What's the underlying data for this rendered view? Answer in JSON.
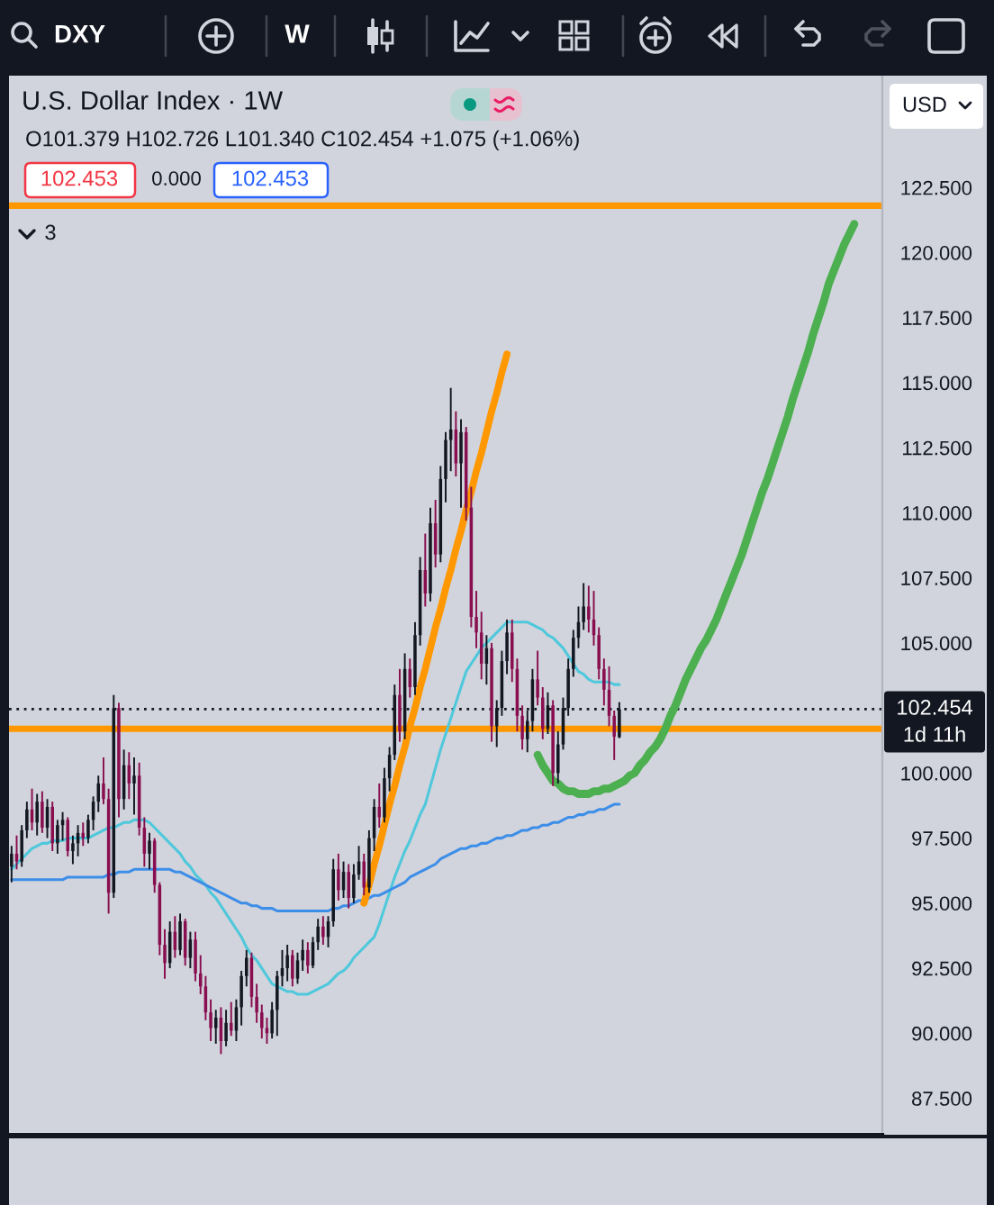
{
  "chart_data": {
    "type": "candlestick",
    "title": "U.S. Dollar Index · 1W",
    "subtitle": "O101.379 H102.726 L101.340 C102.454 +1.075 (+1.06%)",
    "categories": [
      null,
      null,
      null,
      null,
      null,
      null,
      null,
      null,
      null,
      null,
      null,
      null,
      null,
      null,
      null,
      null,
      null,
      null,
      null,
      null,
      null,
      null,
      null,
      null,
      null,
      null,
      null,
      null,
      null,
      null,
      null,
      null,
      null,
      null,
      null,
      null,
      null,
      null,
      null,
      null,
      null,
      null,
      null,
      null,
      null,
      null,
      null,
      null,
      null,
      null,
      null,
      null,
      null,
      null,
      null,
      null,
      null,
      null,
      null,
      null,
      null,
      null,
      null,
      null,
      null,
      null,
      null,
      null,
      null,
      null,
      null,
      null,
      null,
      null,
      null,
      null,
      null,
      null,
      null,
      null,
      null,
      null,
      null,
      null,
      null,
      null,
      null,
      null,
      null,
      null,
      null,
      null,
      null,
      null,
      null,
      null,
      null,
      null,
      null,
      null,
      null,
      null,
      null,
      null,
      null,
      null,
      null,
      null,
      null,
      null,
      null,
      null,
      null,
      null,
      null,
      null,
      null,
      null,
      null,
      null,
      null,
      null,
      null,
      null,
      null,
      null,
      null,
      null,
      null,
      null,
      null,
      null,
      null,
      null,
      null,
      null,
      null,
      null,
      null,
      null,
      null,
      null,
      null,
      null,
      null,
      null,
      null,
      null,
      null,
      null,
      null,
      null,
      null,
      null,
      null,
      null,
      null,
      null,
      null,
      null,
      null,
      null,
      null,
      null,
      null,
      null,
      null,
      null,
      null,
      null,
      null
    ],
    "ohlc": [
      [
        96.4,
        97.2,
        95.8,
        96.9
      ],
      [
        96.9,
        97.6,
        96.3,
        96.6
      ],
      [
        96.6,
        98.0,
        96.4,
        97.8
      ],
      [
        97.8,
        98.9,
        97.5,
        98.6
      ],
      [
        98.6,
        99.4,
        97.8,
        98.1
      ],
      [
        98.1,
        99.2,
        97.6,
        98.9
      ],
      [
        98.9,
        99.3,
        97.7,
        97.9
      ],
      [
        97.9,
        99.0,
        97.5,
        98.7
      ],
      [
        98.7,
        98.9,
        97.0,
        97.3
      ],
      [
        97.3,
        98.2,
        96.9,
        98.0
      ],
      [
        98.0,
        98.5,
        97.4,
        98.2
      ],
      [
        98.2,
        98.3,
        96.8,
        97.0
      ],
      [
        97.0,
        97.6,
        96.5,
        97.3
      ],
      [
        97.3,
        98.0,
        96.8,
        97.7
      ],
      [
        97.7,
        98.1,
        97.2,
        97.5
      ],
      [
        97.5,
        98.4,
        97.3,
        98.2
      ],
      [
        98.2,
        99.1,
        97.8,
        98.9
      ],
      [
        98.9,
        99.9,
        98.5,
        99.6
      ],
      [
        99.6,
        100.6,
        98.8,
        99.0
      ],
      [
        99.0,
        99.4,
        94.6,
        95.4
      ],
      [
        95.4,
        103.0,
        95.2,
        102.5
      ],
      [
        102.5,
        102.7,
        98.3,
        99.0
      ],
      [
        99.0,
        100.9,
        98.6,
        100.3
      ],
      [
        100.3,
        100.8,
        99.0,
        99.6
      ],
      [
        99.6,
        100.6,
        98.4,
        99.9
      ],
      [
        99.9,
        100.4,
        97.6,
        97.9
      ],
      [
        97.9,
        98.3,
        96.4,
        96.9
      ],
      [
        96.9,
        97.7,
        96.3,
        97.4
      ],
      [
        97.4,
        97.5,
        95.4,
        95.7
      ],
      [
        95.7,
        95.8,
        93.0,
        93.4
      ],
      [
        93.4,
        94.0,
        92.1,
        92.7
      ],
      [
        92.7,
        94.3,
        92.5,
        93.9
      ],
      [
        93.9,
        94.5,
        92.9,
        93.2
      ],
      [
        93.2,
        94.6,
        93.0,
        94.3
      ],
      [
        94.3,
        94.4,
        92.6,
        92.9
      ],
      [
        92.9,
        93.9,
        92.5,
        93.6
      ],
      [
        93.6,
        93.9,
        92.0,
        92.3
      ],
      [
        92.3,
        93.0,
        91.5,
        91.8
      ],
      [
        91.8,
        92.2,
        90.5,
        90.8
      ],
      [
        90.8,
        91.3,
        89.7,
        90.2
      ],
      [
        90.2,
        90.9,
        89.6,
        90.6
      ],
      [
        90.6,
        91.0,
        89.2,
        89.7
      ],
      [
        89.7,
        90.9,
        89.5,
        90.4
      ],
      [
        90.4,
        91.2,
        89.9,
        90.1
      ],
      [
        90.1,
        91.3,
        89.7,
        91.0
      ],
      [
        91.0,
        92.4,
        90.3,
        92.2
      ],
      [
        92.2,
        93.2,
        91.8,
        92.9
      ],
      [
        92.9,
        93.1,
        91.0,
        91.4
      ],
      [
        91.4,
        91.9,
        90.4,
        90.8
      ],
      [
        90.8,
        91.1,
        89.8,
        90.2
      ],
      [
        90.2,
        90.6,
        89.6,
        90.0
      ],
      [
        90.0,
        91.2,
        89.8,
        90.9
      ],
      [
        90.9,
        92.4,
        89.9,
        92.2
      ],
      [
        92.2,
        93.2,
        91.8,
        92.5
      ],
      [
        92.5,
        93.4,
        92.0,
        93.0
      ],
      [
        93.0,
        93.2,
        91.8,
        92.1
      ],
      [
        92.1,
        93.1,
        91.9,
        92.8
      ],
      [
        92.8,
        93.6,
        92.4,
        93.2
      ],
      [
        93.2,
        93.5,
        92.3,
        92.6
      ],
      [
        92.6,
        93.7,
        92.5,
        93.5
      ],
      [
        93.5,
        94.4,
        93.2,
        94.1
      ],
      [
        94.1,
        94.5,
        93.4,
        93.7
      ],
      [
        93.7,
        94.5,
        93.3,
        94.3
      ],
      [
        94.3,
        96.7,
        94.1,
        96.3
      ],
      [
        96.3,
        96.9,
        95.1,
        95.5
      ],
      [
        95.5,
        96.6,
        95.2,
        96.2
      ],
      [
        96.2,
        96.5,
        94.8,
        95.2
      ],
      [
        95.2,
        96.5,
        95.0,
        96.1
      ],
      [
        96.1,
        97.2,
        95.9,
        96.6
      ],
      [
        96.6,
        96.9,
        95.3,
        95.6
      ],
      [
        95.6,
        97.8,
        95.4,
        97.5
      ],
      [
        97.5,
        99.0,
        97.0,
        98.7
      ],
      [
        98.7,
        99.6,
        97.9,
        98.3
      ],
      [
        98.3,
        100.2,
        98.1,
        99.8
      ],
      [
        99.8,
        101.0,
        99.3,
        100.7
      ],
      [
        100.7,
        103.4,
        100.5,
        103.0
      ],
      [
        103.0,
        104.0,
        101.2,
        101.6
      ],
      [
        101.6,
        104.6,
        101.3,
        104.0
      ],
      [
        104.0,
        104.4,
        102.9,
        103.3
      ],
      [
        103.3,
        105.8,
        103.0,
        105.3
      ],
      [
        105.3,
        108.3,
        104.9,
        107.8
      ],
      [
        107.8,
        109.2,
        106.4,
        106.9
      ],
      [
        106.9,
        110.2,
        106.6,
        109.6
      ],
      [
        109.6,
        110.5,
        107.9,
        108.4
      ],
      [
        108.4,
        111.8,
        108.1,
        111.3
      ],
      [
        111.3,
        113.1,
        110.4,
        112.8
      ],
      [
        112.8,
        114.8,
        111.6,
        113.2
      ],
      [
        113.2,
        113.9,
        111.4,
        111.9
      ],
      [
        111.9,
        113.6,
        110.2,
        113.1
      ],
      [
        113.1,
        113.3,
        109.7,
        110.2
      ],
      [
        110.2,
        111.0,
        105.6,
        106.0
      ],
      [
        106.0,
        107.0,
        104.8,
        105.4
      ],
      [
        105.4,
        106.2,
        103.6,
        104.2
      ],
      [
        104.2,
        105.3,
        103.4,
        104.8
      ],
      [
        104.8,
        105.0,
        101.2,
        101.8
      ],
      [
        101.8,
        102.8,
        101.0,
        102.5
      ],
      [
        102.5,
        104.7,
        102.2,
        104.3
      ],
      [
        104.3,
        105.9,
        103.8,
        105.4
      ],
      [
        105.4,
        105.9,
        103.5,
        104.0
      ],
      [
        104.0,
        104.4,
        101.6,
        102.2
      ],
      [
        102.2,
        102.6,
        100.9,
        101.3
      ],
      [
        101.3,
        102.4,
        100.8,
        102.0
      ],
      [
        102.0,
        104.0,
        101.6,
        103.6
      ],
      [
        103.6,
        104.7,
        102.6,
        102.9
      ],
      [
        102.9,
        103.3,
        101.3,
        101.7
      ],
      [
        101.7,
        103.1,
        101.5,
        102.6
      ],
      [
        102.6,
        102.8,
        99.5,
        100.0
      ],
      [
        100.0,
        101.6,
        99.6,
        101.1
      ],
      [
        101.1,
        102.9,
        100.9,
        102.5
      ],
      [
        102.5,
        104.4,
        102.2,
        104.0
      ],
      [
        104.0,
        105.5,
        103.7,
        105.2
      ],
      [
        105.2,
        106.4,
        104.8,
        105.8
      ],
      [
        105.8,
        107.3,
        105.5,
        106.4
      ],
      [
        106.4,
        107.2,
        105.4,
        105.9
      ],
      [
        105.9,
        107.0,
        104.9,
        105.3
      ],
      [
        105.3,
        105.6,
        103.6,
        104.0
      ],
      [
        104.0,
        104.4,
        102.6,
        103.2
      ],
      [
        103.2,
        104.1,
        101.8,
        102.2
      ],
      [
        102.2,
        102.4,
        100.5,
        101.4
      ],
      [
        101.379,
        102.726,
        101.34,
        102.454
      ],
      null,
      null,
      null,
      null,
      null,
      null,
      null,
      null,
      null,
      null,
      null,
      null,
      null,
      null,
      null,
      null,
      null,
      null,
      null,
      null,
      null,
      null,
      null,
      null,
      null,
      null,
      null,
      null,
      null,
      null,
      null,
      null,
      null,
      null,
      null,
      null,
      null,
      null,
      null,
      null,
      null,
      null,
      null,
      null,
      null,
      null,
      null,
      null,
      null,
      null,
      null
    ],
    "colors": [
      "#131722",
      "#880e4f",
      "#131722",
      "#131722",
      "#880e4f",
      "#131722",
      "#880e4f",
      "#131722",
      "#880e4f",
      "#131722",
      "#131722",
      "#880e4f",
      "#131722",
      "#131722",
      "#880e4f",
      "#131722",
      "#131722",
      "#131722",
      "#880e4f",
      "#880e4f",
      "#131722",
      "#880e4f",
      "#131722",
      "#880e4f",
      "#131722",
      "#880e4f",
      "#880e4f",
      "#131722",
      "#880e4f",
      "#880e4f",
      "#880e4f",
      "#131722",
      "#880e4f",
      "#131722",
      "#880e4f",
      "#131722",
      "#880e4f",
      "#880e4f",
      "#880e4f",
      "#880e4f",
      "#131722",
      "#880e4f",
      "#131722",
      "#880e4f",
      "#131722",
      "#131722",
      "#131722",
      "#880e4f",
      "#880e4f",
      "#880e4f",
      "#880e4f",
      "#131722",
      "#131722",
      "#131722",
      "#131722",
      "#880e4f",
      "#131722",
      "#131722",
      "#880e4f",
      "#131722",
      "#131722",
      "#880e4f",
      "#131722",
      "#131722",
      "#880e4f",
      "#131722",
      "#880e4f",
      "#131722",
      "#131722",
      "#880e4f",
      "#131722",
      "#131722",
      "#880e4f",
      "#131722",
      "#131722",
      "#131722",
      "#880e4f",
      "#131722",
      "#880e4f",
      "#131722",
      "#131722",
      "#880e4f",
      "#131722",
      "#880e4f",
      "#131722",
      "#131722",
      "#131722",
      "#880e4f",
      "#131722",
      "#880e4f",
      "#880e4f",
      "#880e4f",
      "#880e4f",
      "#131722",
      "#880e4f",
      "#131722",
      "#131722",
      "#131722",
      "#880e4f",
      "#880e4f",
      "#880e4f",
      "#131722",
      "#131722",
      "#880e4f",
      "#880e4f",
      "#131722",
      "#880e4f",
      "#131722",
      "#131722",
      "#131722",
      "#131722",
      "#131722",
      "#131722",
      "#880e4f",
      "#880e4f",
      "#880e4f",
      "#880e4f",
      "#880e4f",
      "#880e4f",
      "#131722",
      null,
      null,
      null,
      null,
      null,
      null,
      null,
      null,
      null,
      null,
      null,
      null,
      null,
      null,
      null,
      null,
      null,
      null,
      null,
      null,
      null,
      null,
      null,
      null,
      null,
      null,
      null,
      null,
      null,
      null,
      null,
      null,
      null,
      null,
      null,
      null,
      null,
      null,
      null,
      null,
      null,
      null,
      null,
      null,
      null,
      null,
      null,
      null,
      null,
      null,
      null
    ],
    "series": [
      {
        "type": "line",
        "color": "#4fc8dc",
        "values": [
          96.3,
          96.5,
          96.7,
          96.9,
          97.1,
          97.2,
          97.3,
          97.3,
          97.4,
          97.4,
          97.4,
          97.5,
          97.5,
          97.5,
          97.5,
          97.5,
          97.6,
          97.7,
          97.8,
          97.9,
          97.9,
          98.0,
          98.1,
          98.1,
          98.2,
          98.2,
          98.2,
          98.1,
          97.9,
          97.7,
          97.5,
          97.3,
          97.1,
          96.9,
          96.6,
          96.4,
          96.1,
          95.9,
          95.7,
          95.4,
          95.2,
          94.9,
          94.6,
          94.3,
          94.0,
          93.7,
          93.3,
          93.0,
          92.8,
          92.5,
          92.2,
          91.9,
          91.8,
          91.7,
          91.6,
          91.6,
          91.5,
          91.5,
          91.5,
          91.6,
          91.7,
          91.8,
          91.9,
          92.1,
          92.3,
          92.4,
          92.6,
          92.9,
          93.1,
          93.3,
          93.5,
          93.7,
          94.2,
          94.8,
          95.4,
          96.0,
          96.5,
          97.0,
          97.4,
          97.9,
          98.4,
          98.8,
          99.5,
          100.2,
          100.9,
          101.5,
          102.1,
          102.7,
          103.3,
          103.9,
          104.2,
          104.5,
          104.8,
          105.0,
          105.2,
          105.4,
          105.6,
          105.8,
          105.8,
          105.8,
          105.8,
          105.8,
          105.7,
          105.6,
          105.5,
          105.3,
          105.2,
          105.0,
          104.8,
          104.5,
          104.2,
          103.9,
          103.8,
          103.6,
          103.5,
          103.5,
          103.5,
          103.5,
          103.4,
          103.4,
          null,
          null,
          null,
          null,
          null,
          null,
          null,
          null,
          null,
          null,
          null,
          null,
          null,
          null,
          null,
          null,
          null,
          null,
          null,
          null,
          null,
          null,
          null,
          null,
          null,
          null,
          null,
          null,
          null,
          null,
          null,
          null,
          null,
          null,
          null,
          null,
          null,
          null,
          null,
          null,
          null,
          null,
          null,
          null,
          null,
          null,
          null,
          null,
          null,
          null,
          null
        ]
      },
      {
        "type": "line",
        "color": "#3d8ee8",
        "values": [
          95.9,
          95.9,
          95.9,
          95.9,
          95.9,
          95.9,
          95.9,
          95.9,
          95.9,
          95.9,
          95.9,
          96.0,
          96.0,
          96.0,
          96.0,
          96.0,
          96.0,
          96.0,
          96.0,
          96.1,
          96.1,
          96.2,
          96.2,
          96.2,
          96.3,
          96.3,
          96.3,
          96.3,
          96.3,
          96.3,
          96.3,
          96.3,
          96.2,
          96.2,
          96.1,
          96.0,
          95.9,
          95.8,
          95.7,
          95.6,
          95.5,
          95.4,
          95.3,
          95.2,
          95.1,
          95.0,
          95.0,
          94.9,
          94.9,
          94.8,
          94.8,
          94.8,
          94.7,
          94.7,
          94.7,
          94.7,
          94.7,
          94.7,
          94.7,
          94.7,
          94.7,
          94.7,
          94.7,
          94.8,
          94.8,
          94.9,
          94.9,
          95.0,
          95.1,
          95.1,
          95.2,
          95.3,
          95.3,
          95.4,
          95.5,
          95.6,
          95.7,
          95.8,
          96.0,
          96.1,
          96.2,
          96.3,
          96.4,
          96.5,
          96.7,
          96.8,
          96.9,
          97.0,
          97.1,
          97.1,
          97.2,
          97.2,
          97.3,
          97.3,
          97.4,
          97.5,
          97.5,
          97.6,
          97.6,
          97.7,
          97.8,
          97.8,
          97.9,
          97.9,
          98.0,
          98.0,
          98.1,
          98.1,
          98.2,
          98.3,
          98.3,
          98.4,
          98.4,
          98.5,
          98.5,
          98.6,
          98.6,
          98.7,
          98.8,
          98.8,
          null,
          null,
          null,
          null,
          null,
          null,
          null,
          null,
          null,
          null,
          null,
          null,
          null,
          null,
          null,
          null,
          null,
          null,
          null,
          null,
          null,
          null,
          null,
          null,
          null,
          null,
          null,
          null,
          null,
          null,
          null,
          null,
          null,
          null,
          null,
          null,
          null,
          null,
          null,
          null,
          null,
          null,
          null,
          null,
          null,
          null,
          null,
          null,
          null,
          null,
          null
        ]
      },
      {
        "type": "line",
        "color": "#ff9800",
        "values": [
          null,
          null,
          null,
          null,
          null,
          null,
          null,
          null,
          null,
          null,
          null,
          null,
          null,
          null,
          null,
          null,
          null,
          null,
          null,
          null,
          null,
          null,
          null,
          null,
          null,
          null,
          null,
          null,
          null,
          null,
          null,
          null,
          null,
          null,
          null,
          null,
          null,
          null,
          null,
          null,
          null,
          null,
          null,
          null,
          null,
          null,
          null,
          null,
          null,
          null,
          null,
          null,
          null,
          null,
          null,
          null,
          null,
          null,
          null,
          null,
          null,
          null,
          null,
          null,
          null,
          null,
          null,
          null,
          null,
          95.0,
          95.7,
          96.5,
          97.2,
          98.0,
          98.8,
          99.5,
          100.3,
          101.0,
          101.8,
          102.5,
          103.3,
          104.0,
          104.8,
          105.6,
          106.3,
          107.1,
          107.8,
          108.6,
          109.3,
          110.1,
          110.8,
          111.6,
          112.3,
          113.1,
          113.9,
          114.6,
          115.4,
          116.1,
          null,
          null,
          null,
          null,
          null,
          null,
          null,
          null,
          null,
          null,
          null,
          null,
          null,
          null,
          null,
          null,
          null,
          null,
          null,
          null,
          null,
          null,
          null,
          null,
          null,
          null,
          null,
          null,
          null,
          null,
          null,
          null,
          null,
          null,
          null,
          null,
          null,
          null,
          null,
          null,
          null,
          null,
          null,
          null,
          null,
          null,
          null,
          null,
          null,
          null,
          null,
          null,
          null,
          null,
          null,
          null,
          null,
          null,
          null,
          null,
          null,
          null,
          null,
          null,
          null,
          null,
          null,
          null,
          null,
          null,
          null,
          null,
          null
        ]
      },
      {
        "type": "line",
        "color": "#4caf50",
        "values": [
          null,
          null,
          null,
          null,
          null,
          null,
          null,
          null,
          null,
          null,
          null,
          null,
          null,
          null,
          null,
          null,
          null,
          null,
          null,
          null,
          null,
          null,
          null,
          null,
          null,
          null,
          null,
          null,
          null,
          null,
          null,
          null,
          null,
          null,
          null,
          null,
          null,
          null,
          null,
          null,
          null,
          null,
          null,
          null,
          null,
          null,
          null,
          null,
          null,
          null,
          null,
          null,
          null,
          null,
          null,
          null,
          null,
          null,
          null,
          null,
          null,
          null,
          null,
          null,
          null,
          null,
          null,
          null,
          null,
          null,
          null,
          null,
          null,
          null,
          null,
          null,
          null,
          null,
          null,
          null,
          null,
          null,
          null,
          null,
          null,
          null,
          null,
          null,
          null,
          null,
          null,
          null,
          null,
          null,
          null,
          null,
          null,
          null,
          null,
          null,
          null,
          null,
          null,
          100.7,
          100.3,
          100.0,
          99.7,
          99.6,
          99.4,
          99.3,
          99.3,
          99.2,
          99.2,
          99.2,
          99.3,
          99.3,
          99.4,
          99.4,
          99.5,
          99.6,
          99.7,
          99.9,
          100.0,
          100.3,
          100.5,
          100.8,
          101.0,
          101.3,
          101.7,
          102.2,
          102.6,
          103.1,
          103.6,
          104.0,
          104.4,
          104.8,
          105.1,
          105.5,
          105.9,
          106.4,
          106.9,
          107.4,
          107.9,
          108.4,
          109.0,
          109.6,
          110.2,
          110.8,
          111.3,
          111.9,
          112.5,
          113.1,
          113.7,
          114.4,
          115.0,
          115.6,
          116.2,
          116.9,
          117.5,
          118.1,
          118.8,
          119.3,
          119.8,
          120.3,
          120.7,
          121.1,
          null,
          null,
          null,
          null,
          null
        ]
      }
    ],
    "ylim": [
      86.1,
      126.8
    ],
    "yticks": [
      {
        "value": 122.5,
        "label": "122.500"
      },
      {
        "value": 120,
        "label": "120.000"
      },
      {
        "value": 117.5,
        "label": "117.500"
      },
      {
        "value": 115,
        "label": "115.000"
      },
      {
        "value": 112.5,
        "label": "112.500"
      },
      {
        "value": 110,
        "label": "110.000"
      },
      {
        "value": 107.5,
        "label": "107.500"
      },
      {
        "value": 105,
        "label": "105.000"
      },
      {
        "value": 100,
        "label": "100.000"
      },
      {
        "value": 97.5,
        "label": "97.500"
      },
      {
        "value": 95,
        "label": "95.000"
      },
      {
        "value": 92.5,
        "label": "92.500"
      },
      {
        "value": 90,
        "label": "90.000"
      },
      {
        "value": 87.5,
        "label": "87.500"
      }
    ],
    "tick_labels": "y",
    "ref_lines": [
      {
        "axis": "y",
        "value": 121.8,
        "color": "#ff9800",
        "line_style": "solid"
      },
      {
        "axis": "y",
        "value": 101.7,
        "color": "#ff9800",
        "line_style": "solid"
      },
      {
        "axis": "y",
        "value": 102.454,
        "label": "102.454",
        "color": "#131722",
        "line_style": "dotted"
      }
    ],
    "annotations": [
      "DXY",
      "W",
      "102.453",
      "0.000",
      "102.453",
      "3",
      "USD",
      "1d 11h"
    ]
  }
}
